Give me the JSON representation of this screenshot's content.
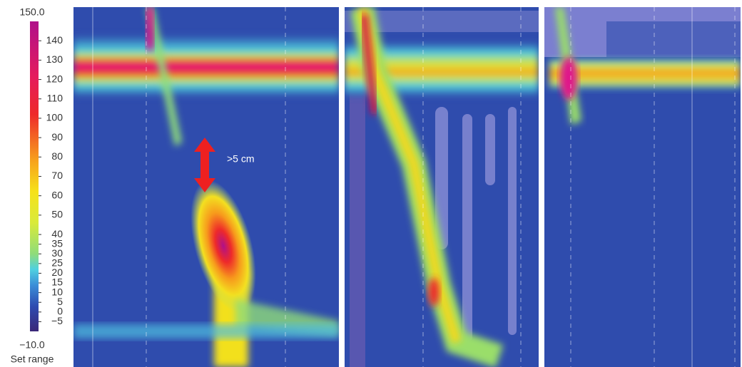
{
  "colorbar": {
    "ticks": [
      {
        "value": 150,
        "label": "150.0"
      },
      140,
      130,
      120,
      110,
      100,
      90,
      80,
      70,
      60,
      50,
      40,
      35,
      30,
      25,
      20,
      15,
      10,
      5,
      0,
      {
        "value": -5,
        "label": "−5"
      },
      {
        "value": -10,
        "label": "−10.0"
      }
    ],
    "caption": "Set range"
  },
  "annotation": ">5 cm"
}
